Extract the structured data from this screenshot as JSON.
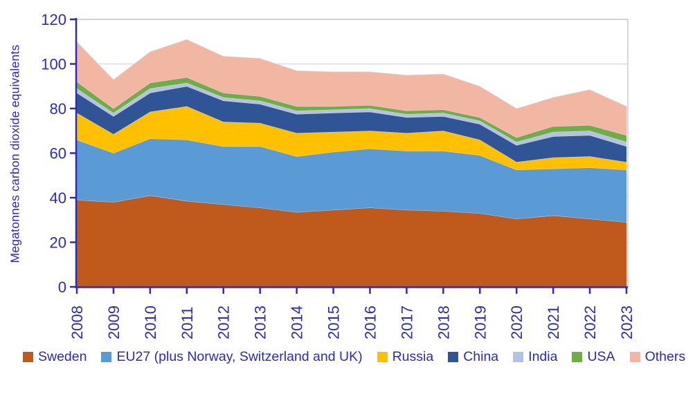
{
  "styles": {
    "text_color": "#2B2BB8",
    "axis_color": "#2B2BB8",
    "grid_color": "#D8D8F0",
    "border_color": "#C8C8E0",
    "background": "#FFFFFF"
  },
  "chart_data": {
    "type": "area",
    "stacked": true,
    "title": "",
    "xlabel": "",
    "ylabel": "Megatonnes carbon dioxide equivalents",
    "ylim": [
      0,
      120
    ],
    "yticks": [
      0,
      20,
      40,
      60,
      80,
      100,
      120
    ],
    "grid": true,
    "legend_position": "bottom",
    "x": [
      2008,
      2009,
      2010,
      2011,
      2012,
      2013,
      2014,
      2015,
      2016,
      2017,
      2018,
      2019,
      2020,
      2021,
      2022,
      2023
    ],
    "series": [
      {
        "name": "Sweden",
        "color": "#C05A1C",
        "values": [
          39,
          38,
          41,
          38.5,
          37,
          35.5,
          33.5,
          34.5,
          35.5,
          34.5,
          34,
          33,
          30.5,
          32,
          30.5,
          29
        ]
      },
      {
        "name": "EU27 (plus Norway, Switzerland and UK)",
        "color": "#5B9BD5",
        "values": [
          27,
          22,
          25.5,
          27.5,
          26,
          27.5,
          25,
          26,
          26.5,
          26.5,
          27,
          26,
          22,
          21,
          23,
          23.5
        ]
      },
      {
        "name": "Russia",
        "color": "#FFC000",
        "values": [
          12,
          8.5,
          12,
          15,
          11,
          10.5,
          10.5,
          9,
          8,
          8,
          9,
          7,
          3.5,
          5,
          5,
          3.5
        ]
      },
      {
        "name": "China",
        "color": "#2F5597",
        "values": [
          9,
          8,
          8.5,
          9,
          9.5,
          8.5,
          8.5,
          8.5,
          8.5,
          7,
          6.5,
          7,
          7.5,
          9.5,
          9.5,
          7
        ]
      },
      {
        "name": "India",
        "color": "#B3C3E6",
        "values": [
          2,
          1.5,
          2,
          1.5,
          1.5,
          1.5,
          1.5,
          1.5,
          1.5,
          1.5,
          1.5,
          1.5,
          1.5,
          2,
          2,
          2
        ]
      },
      {
        "name": "USA",
        "color": "#70AD47",
        "values": [
          3,
          2,
          2.5,
          2.5,
          2,
          2,
          2,
          1.5,
          1.5,
          1.5,
          1.5,
          1.5,
          2,
          2.5,
          2.5,
          3
        ]
      },
      {
        "name": "Others",
        "color": "#F2B7A3",
        "values": [
          18,
          13,
          14,
          17,
          16.5,
          17,
          16,
          15.5,
          15,
          16,
          16,
          14,
          13,
          13,
          16,
          13
        ]
      }
    ]
  }
}
